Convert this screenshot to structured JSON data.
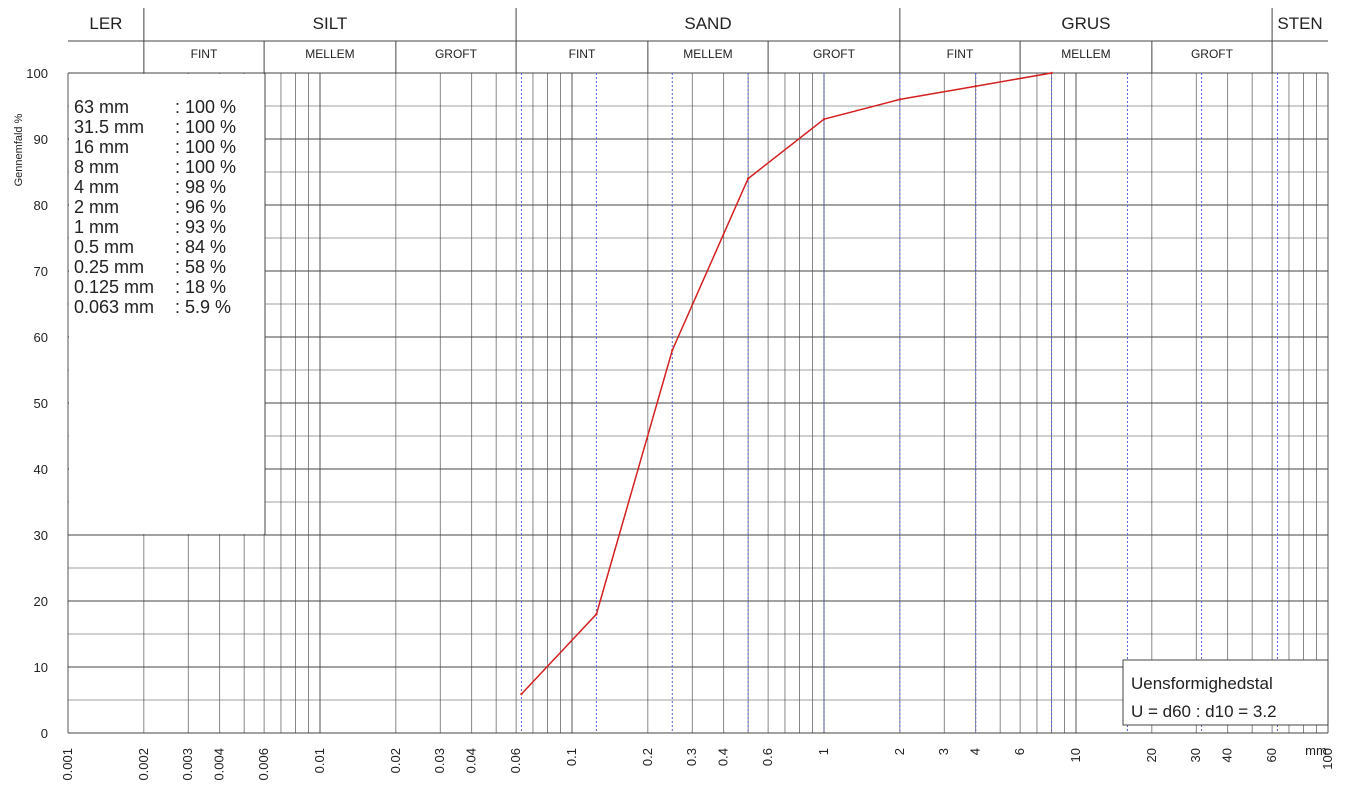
{
  "chart_data": {
    "type": "line",
    "ylabel": "Gennemfald %",
    "xunit": "mm",
    "xscale": "log",
    "xlim": [
      0.001,
      100
    ],
    "ylim": [
      0,
      100
    ],
    "yticks": [
      "0",
      "10",
      "20",
      "30",
      "40",
      "50",
      "60",
      "70",
      "80",
      "90",
      "100"
    ],
    "xticks": [
      {
        "value": 0.001,
        "label": "0.001"
      },
      {
        "value": 0.002,
        "label": "0.002"
      },
      {
        "value": 0.003,
        "label": "0.003"
      },
      {
        "value": 0.004,
        "label": "0.004"
      },
      {
        "value": 0.006,
        "label": "0.006"
      },
      {
        "value": 0.01,
        "label": "0.01"
      },
      {
        "value": 0.02,
        "label": "0.02"
      },
      {
        "value": 0.03,
        "label": "0.03"
      },
      {
        "value": 0.04,
        "label": "0.04"
      },
      {
        "value": 0.06,
        "label": "0.06"
      },
      {
        "value": 0.1,
        "label": "0.1"
      },
      {
        "value": 0.2,
        "label": "0.2"
      },
      {
        "value": 0.3,
        "label": "0.3"
      },
      {
        "value": 0.4,
        "label": "0.4"
      },
      {
        "value": 0.6,
        "label": "0.6"
      },
      {
        "value": 1,
        "label": "1"
      },
      {
        "value": 2,
        "label": "2"
      },
      {
        "value": 3,
        "label": "3"
      },
      {
        "value": 4,
        "label": "4"
      },
      {
        "value": 6,
        "label": "6"
      },
      {
        "value": 10,
        "label": "10"
      },
      {
        "value": 20,
        "label": "20"
      },
      {
        "value": 30,
        "label": "30"
      },
      {
        "value": 40,
        "label": "40"
      },
      {
        "value": 60,
        "label": "60"
      },
      {
        "value": 100,
        "label": "100"
      }
    ],
    "soil_classes": [
      {
        "label": "LER",
        "from": 0.001,
        "to": 0.002,
        "subs": []
      },
      {
        "label": "SILT",
        "from": 0.002,
        "to": 0.06,
        "subs": [
          {
            "label": "FINT",
            "from": 0.002,
            "to": 0.006
          },
          {
            "label": "MELLEM",
            "from": 0.006,
            "to": 0.02
          },
          {
            "label": "GROFT",
            "from": 0.02,
            "to": 0.06
          }
        ]
      },
      {
        "label": "SAND",
        "from": 0.06,
        "to": 2,
        "subs": [
          {
            "label": "FINT",
            "from": 0.06,
            "to": 0.2
          },
          {
            "label": "MELLEM",
            "from": 0.2,
            "to": 0.6
          },
          {
            "label": "GROFT",
            "from": 0.6,
            "to": 2
          }
        ]
      },
      {
        "label": "GRUS",
        "from": 2,
        "to": 60,
        "subs": [
          {
            "label": "FINT",
            "from": 2,
            "to": 6
          },
          {
            "label": "MELLEM",
            "from": 6,
            "to": 20
          },
          {
            "label": "GROFT",
            "from": 20,
            "to": 60
          }
        ]
      },
      {
        "label": "STEN",
        "from": 60,
        "to": 100,
        "subs": []
      }
    ],
    "sieve_lines": [
      0.063,
      0.125,
      0.25,
      0.5,
      1,
      2,
      4,
      8,
      16,
      31.5,
      63
    ],
    "series": [
      {
        "color": "#d42020",
        "x": [
          0.063,
          0.125,
          0.25,
          0.5,
          1,
          2,
          4,
          8
        ],
        "y": [
          5.9,
          18,
          58,
          84,
          93,
          96,
          98,
          100
        ]
      }
    ],
    "sieve_table": [
      {
        "size": "63 mm",
        "value": ": 100 %"
      },
      {
        "size": "31.5 mm",
        "value": ": 100 %"
      },
      {
        "size": "16 mm",
        "value": ": 100 %"
      },
      {
        "size": "8 mm",
        "value": ": 100 %"
      },
      {
        "size": "4 mm",
        "value": ": 98 %"
      },
      {
        "size": "2 mm",
        "value": ": 96 %"
      },
      {
        "size": "1 mm",
        "value": ": 93 %"
      },
      {
        "size": "0.5 mm",
        "value": ": 84 %"
      },
      {
        "size": "0.25 mm",
        "value": ": 58 %"
      },
      {
        "size": "0.125 mm",
        "value": ": 18 %"
      },
      {
        "size": "0.063 mm",
        "value": ": 5.9 %"
      }
    ],
    "uniformity": {
      "title": "Uensformighedstal",
      "formula": "U = d60 : d10 = 3.2"
    }
  }
}
